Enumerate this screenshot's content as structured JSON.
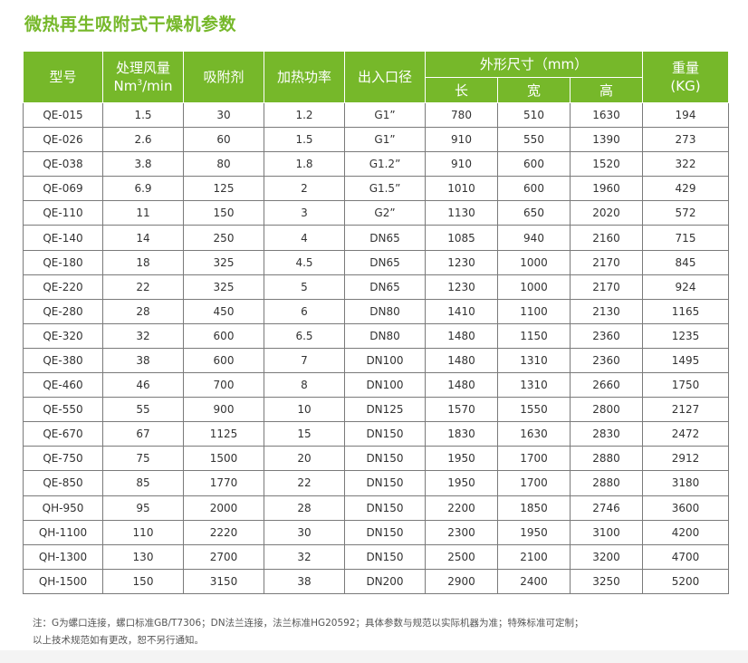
{
  "title": "微热再生吸附式干燥机参数",
  "headers": {
    "model": "型号",
    "flow_line1": "处理风量",
    "flow_unit_pre": "Nm",
    "flow_unit_sup": "3",
    "flow_unit_post": "/min",
    "adsorbent": "吸附剂",
    "power": "加热功率",
    "port": "出入口径",
    "dims": "外形尺寸（mm）",
    "length": "长",
    "width": "宽",
    "height": "高",
    "weight_line1": "重量",
    "weight_line2": "(KG)"
  },
  "rows": [
    [
      "QE-015",
      "1.5",
      "30",
      "1.2",
      "G1”",
      "780",
      "510",
      "1630",
      "194"
    ],
    [
      "QE-026",
      "2.6",
      "60",
      "1.5",
      "G1”",
      "910",
      "550",
      "1390",
      "273"
    ],
    [
      "QE-038",
      "3.8",
      "80",
      "1.8",
      "G1.2”",
      "910",
      "600",
      "1520",
      "322"
    ],
    [
      "QE-069",
      "6.9",
      "125",
      "2",
      "G1.5”",
      "1010",
      "600",
      "1960",
      "429"
    ],
    [
      "QE-110",
      "11",
      "150",
      "3",
      "G2”",
      "1130",
      "650",
      "2020",
      "572"
    ],
    [
      "QE-140",
      "14",
      "250",
      "4",
      "DN65",
      "1085",
      "940",
      "2160",
      "715"
    ],
    [
      "QE-180",
      "18",
      "325",
      "4.5",
      "DN65",
      "1230",
      "1000",
      "2170",
      "845"
    ],
    [
      "QE-220",
      "22",
      "325",
      "5",
      "DN65",
      "1230",
      "1000",
      "2170",
      "924"
    ],
    [
      "QE-280",
      "28",
      "450",
      "6",
      "DN80",
      "1410",
      "1100",
      "2130",
      "1165"
    ],
    [
      "QE-320",
      "32",
      "600",
      "6.5",
      "DN80",
      "1480",
      "1150",
      "2360",
      "1235"
    ],
    [
      "QE-380",
      "38",
      "600",
      "7",
      "DN100",
      "1480",
      "1310",
      "2360",
      "1495"
    ],
    [
      "QE-460",
      "46",
      "700",
      "8",
      "DN100",
      "1480",
      "1310",
      "2660",
      "1750"
    ],
    [
      "QE-550",
      "55",
      "900",
      "10",
      "DN125",
      "1570",
      "1550",
      "2800",
      "2127"
    ],
    [
      "QE-670",
      "67",
      "1125",
      "15",
      "DN150",
      "1830",
      "1630",
      "2830",
      "2472"
    ],
    [
      "QE-750",
      "75",
      "1500",
      "20",
      "DN150",
      "1950",
      "1700",
      "2880",
      "2912"
    ],
    [
      "QE-850",
      "85",
      "1770",
      "22",
      "DN150",
      "1950",
      "1700",
      "2880",
      "3180"
    ],
    [
      "QH-950",
      "95",
      "2000",
      "28",
      "DN150",
      "2200",
      "1850",
      "2746",
      "3600"
    ],
    [
      "QH-1100",
      "110",
      "2220",
      "30",
      "DN150",
      "2300",
      "1950",
      "3100",
      "4200"
    ],
    [
      "QH-1300",
      "130",
      "2700",
      "32",
      "DN150",
      "2500",
      "2100",
      "3200",
      "4700"
    ],
    [
      "QH-1500",
      "150",
      "3150",
      "38",
      "DN200",
      "2900",
      "2400",
      "3250",
      "5200"
    ]
  ],
  "notes": {
    "line1": "注：G为螺口连接，螺口标准GB/T7306；DN法兰连接，法兰标准HG20592；具体参数与规范以实际机器为准；特殊标准可定制；",
    "line2": "以上技术规范如有更改，恕不另行通知。"
  },
  "colors": {
    "header_bg": "#76b82a",
    "title": "#76b82a"
  }
}
